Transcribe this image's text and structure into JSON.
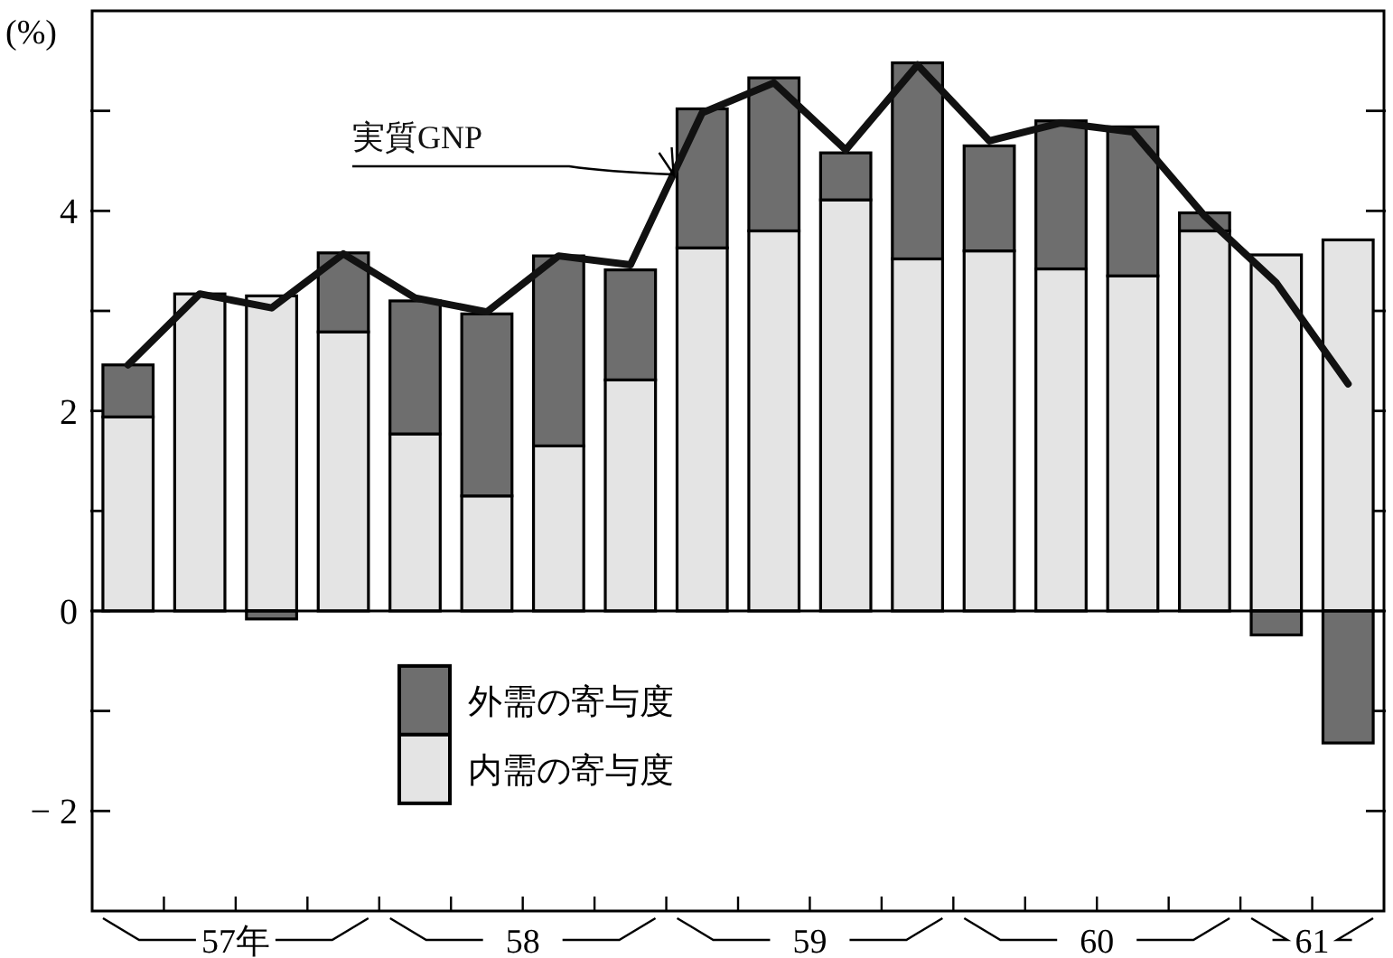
{
  "chart_data": {
    "type": "bar",
    "stacked": true,
    "ylabel": "(%)",
    "categories": [
      null,
      null,
      null,
      null,
      null,
      null,
      null,
      null,
      null,
      null,
      null,
      null,
      null,
      null,
      null,
      null,
      null,
      null
    ],
    "annotations": [
      "57年",
      "58",
      "59",
      "60",
      "61"
    ],
    "series": [
      {
        "name": "内需の寄与度",
        "color": "#e4e4e4",
        "values": [
          1.94,
          3.17,
          3.15,
          2.79,
          1.77,
          1.15,
          1.65,
          2.31,
          3.63,
          3.8,
          4.11,
          3.52,
          3.6,
          3.42,
          3.35,
          3.8,
          3.56,
          3.71
        ]
      },
      {
        "name": "外需の寄与度",
        "color": "#6e6e6e",
        "values": [
          0.52,
          0,
          -0.08,
          0.79,
          1.33,
          1.82,
          1.9,
          1.1,
          1.39,
          1.53,
          0.47,
          1.96,
          1.05,
          1.48,
          1.49,
          0.18,
          -0.24,
          -1.32
        ]
      },
      {
        "name": "実質GNP",
        "type": "line",
        "color": "#111111",
        "values": [
          2.46,
          3.17,
          3.03,
          3.57,
          3.13,
          2.99,
          3.55,
          3.46,
          4.98,
          5.28,
          4.61,
          5.46,
          4.7,
          4.88,
          4.79,
          3.95,
          3.28,
          2.27
        ]
      }
    ],
    "ylim": [
      -3,
      6
    ],
    "yticks": [
      {
        "value": -2,
        "label": "− 2"
      },
      {
        "value": -1,
        "label": null
      },
      0,
      {
        "value": 1,
        "label": null
      },
      2,
      {
        "value": 3,
        "label": null
      },
      4,
      {
        "value": 5,
        "label": null
      }
    ],
    "ref_lines": [
      {
        "axis": "y",
        "value": 0
      }
    ],
    "legend": "bottom left",
    "grid": false
  }
}
